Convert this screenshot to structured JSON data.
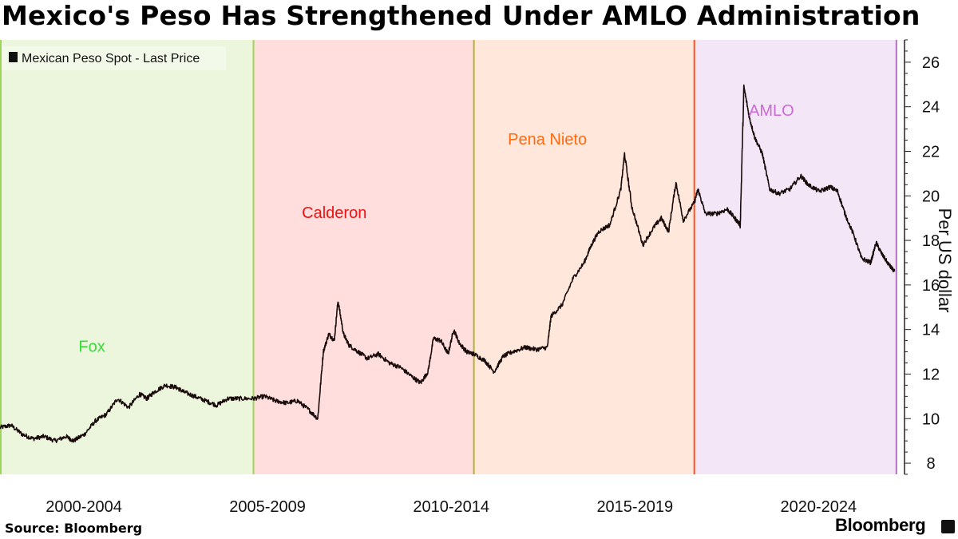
{
  "title": "Mexico's Peso Has Strengthened Under AMLO Administration",
  "source": "Source: Bloomberg",
  "brand": "Bloomberg",
  "chart_data": {
    "type": "line",
    "title": "Mexico's Peso Has Strengthened Under AMLO Administration",
    "ylabel": "Per US dollar",
    "xlabel": "",
    "ylim": [
      7.5,
      27
    ],
    "yticks": [
      8,
      10,
      12,
      14,
      16,
      18,
      20,
      22,
      24,
      26
    ],
    "xlim": [
      2000.0,
      2024.6
    ],
    "xticks": [
      {
        "label": "2000-2004",
        "at": 2002.0
      },
      {
        "label": "2005-2009",
        "at": 2007.0
      },
      {
        "label": "2010-2014",
        "at": 2012.0
      },
      {
        "label": "2015-2019",
        "at": 2017.0
      },
      {
        "label": "2020-2024",
        "at": 2022.0
      }
    ],
    "legend": {
      "label": "Mexican Peso Spot - Last Price",
      "position": "top-left"
    },
    "eras": [
      {
        "name": "Fox",
        "start": 2000.0,
        "end": 2006.9,
        "fill": "#ecf6dd",
        "line": "#9fd45a",
        "label_color": "#33e033",
        "label_at": [
          2002.5,
          13.0
        ]
      },
      {
        "name": "Calderon",
        "start": 2006.9,
        "end": 2012.9,
        "fill": "#ffdedd",
        "line": "#b3b03a",
        "label_color": "#ee1111",
        "label_at": [
          2009.1,
          19.0
        ]
      },
      {
        "name": "Pena Nieto",
        "start": 2012.9,
        "end": 2018.9,
        "fill": "#ffe7dc",
        "line": "#ff5020",
        "label_color": "#ff6a10",
        "label_at": [
          2014.9,
          22.3
        ]
      },
      {
        "name": "AMLO",
        "start": 2018.9,
        "end": 2024.4,
        "fill": "#f3e6f7",
        "line": "#b46ec2",
        "label_color": "#cc6ad5",
        "label_at": [
          2021.0,
          23.6
        ]
      }
    ],
    "series": [
      {
        "name": "Mexican Peso Spot - Last Price",
        "color": "#1a0b0b",
        "points": [
          [
            2000.0,
            9.6
          ],
          [
            2000.3,
            9.7
          ],
          [
            2000.6,
            9.3
          ],
          [
            2000.9,
            9.1
          ],
          [
            2001.2,
            9.2
          ],
          [
            2001.5,
            9.0
          ],
          [
            2001.8,
            9.2
          ],
          [
            2002.0,
            9.0
          ],
          [
            2002.3,
            9.3
          ],
          [
            2002.6,
            9.9
          ],
          [
            2002.9,
            10.2
          ],
          [
            2003.2,
            10.9
          ],
          [
            2003.5,
            10.5
          ],
          [
            2003.8,
            11.1
          ],
          [
            2004.0,
            10.9
          ],
          [
            2004.2,
            11.2
          ],
          [
            2004.5,
            11.5
          ],
          [
            2004.8,
            11.4
          ],
          [
            2005.0,
            11.2
          ],
          [
            2005.3,
            11.0
          ],
          [
            2005.6,
            10.8
          ],
          [
            2005.9,
            10.6
          ],
          [
            2006.2,
            10.9
          ],
          [
            2006.5,
            10.9
          ],
          [
            2006.9,
            10.9
          ],
          [
            2007.2,
            11.0
          ],
          [
            2007.5,
            10.8
          ],
          [
            2007.8,
            10.7
          ],
          [
            2008.1,
            10.8
          ],
          [
            2008.4,
            10.4
          ],
          [
            2008.65,
            10.0
          ],
          [
            2008.8,
            13.0
          ],
          [
            2008.95,
            13.8
          ],
          [
            2009.1,
            13.5
          ],
          [
            2009.2,
            15.3
          ],
          [
            2009.35,
            13.8
          ],
          [
            2009.5,
            13.3
          ],
          [
            2009.75,
            13.0
          ],
          [
            2010.0,
            12.7
          ],
          [
            2010.3,
            12.9
          ],
          [
            2010.6,
            12.5
          ],
          [
            2010.9,
            12.3
          ],
          [
            2011.2,
            11.9
          ],
          [
            2011.45,
            11.6
          ],
          [
            2011.65,
            12.1
          ],
          [
            2011.8,
            13.6
          ],
          [
            2012.0,
            13.5
          ],
          [
            2012.2,
            12.9
          ],
          [
            2012.35,
            14.0
          ],
          [
            2012.5,
            13.4
          ],
          [
            2012.7,
            13.0
          ],
          [
            2012.9,
            12.9
          ],
          [
            2013.2,
            12.6
          ],
          [
            2013.45,
            12.1
          ],
          [
            2013.7,
            12.8
          ],
          [
            2013.95,
            13.0
          ],
          [
            2014.3,
            13.2
          ],
          [
            2014.6,
            13.1
          ],
          [
            2014.9,
            13.2
          ],
          [
            2015.0,
            14.6
          ],
          [
            2015.3,
            15.1
          ],
          [
            2015.6,
            16.3
          ],
          [
            2015.9,
            17.0
          ],
          [
            2016.1,
            17.8
          ],
          [
            2016.3,
            18.4
          ],
          [
            2016.6,
            18.7
          ],
          [
            2016.9,
            20.3
          ],
          [
            2017.0,
            21.9
          ],
          [
            2017.2,
            19.5
          ],
          [
            2017.5,
            17.8
          ],
          [
            2017.8,
            18.6
          ],
          [
            2018.0,
            19.0
          ],
          [
            2018.2,
            18.4
          ],
          [
            2018.4,
            20.6
          ],
          [
            2018.6,
            18.9
          ],
          [
            2018.9,
            19.7
          ],
          [
            2019.0,
            20.3
          ],
          [
            2019.2,
            19.2
          ],
          [
            2019.5,
            19.2
          ],
          [
            2019.8,
            19.4
          ],
          [
            2020.0,
            19.0
          ],
          [
            2020.15,
            18.7
          ],
          [
            2020.25,
            24.9
          ],
          [
            2020.4,
            23.5
          ],
          [
            2020.55,
            22.6
          ],
          [
            2020.75,
            21.9
          ],
          [
            2020.95,
            20.3
          ],
          [
            2021.2,
            20.1
          ],
          [
            2021.5,
            20.3
          ],
          [
            2021.8,
            20.9
          ],
          [
            2022.0,
            20.5
          ],
          [
            2022.3,
            20.2
          ],
          [
            2022.6,
            20.4
          ],
          [
            2022.8,
            20.2
          ],
          [
            2023.0,
            19.2
          ],
          [
            2023.25,
            18.2
          ],
          [
            2023.45,
            17.2
          ],
          [
            2023.7,
            17.0
          ],
          [
            2023.85,
            17.9
          ],
          [
            2024.0,
            17.4
          ],
          [
            2024.2,
            16.9
          ],
          [
            2024.35,
            16.6
          ]
        ]
      }
    ]
  }
}
